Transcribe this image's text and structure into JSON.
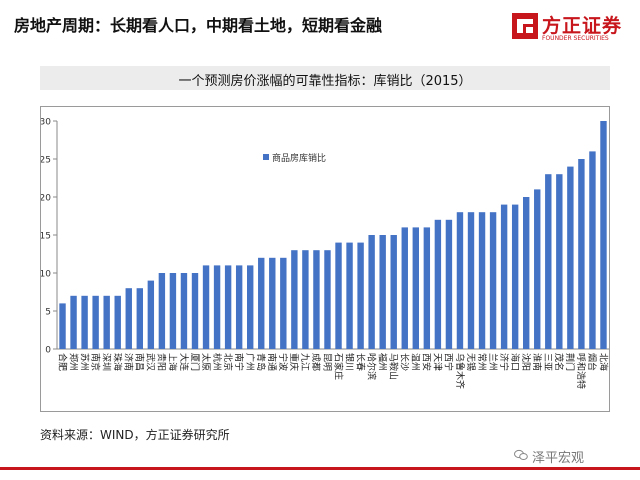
{
  "header": {
    "title": "房地产周期：长期看人口，中期看土地，短期看金融"
  },
  "logo": {
    "name": "方正证券",
    "sub": "FOUNDER SECURITIES"
  },
  "colors": {
    "bar": "#4472c4",
    "accent": "#c8161d",
    "title_bg": "#ececec"
  },
  "chart_data": {
    "type": "bar",
    "title": "一个预测房价涨幅的可靠性指标：库销比（2015）",
    "legend": [
      "商品房库销比"
    ],
    "legend_position": "top-left",
    "categories": [
      "合肥",
      "郑州",
      "苏州",
      "南京",
      "深圳",
      "珠海",
      "济南",
      "南昌",
      "武汉",
      "贵阳",
      "上海",
      "大连",
      "厦门",
      "太原",
      "杭州",
      "北京",
      "南宁",
      "广州",
      "青岛",
      "南通",
      "宁波",
      "重庆",
      "九江",
      "成都",
      "昆明",
      "石家庄",
      "银川",
      "长春",
      "哈尔滨",
      "福州",
      "马鞍山",
      "长沙",
      "温州",
      "西安",
      "天津",
      "西宁",
      "乌鲁木齐",
      "无锡",
      "常州",
      "兰州",
      "济宁",
      "海口",
      "沈阳",
      "淮南",
      "三亚",
      "茂名",
      "荆门",
      "呼和浩特",
      "烟台",
      "北海"
    ],
    "series": [
      {
        "name": "商品房库销比",
        "values": [
          6,
          7,
          7,
          7,
          7,
          7,
          8,
          8,
          9,
          10,
          10,
          10,
          10,
          11,
          11,
          11,
          11,
          11,
          12,
          12,
          12,
          13,
          13,
          13,
          13,
          14,
          14,
          14,
          15,
          15,
          15,
          16,
          16,
          16,
          17,
          17,
          18,
          18,
          18,
          18,
          19,
          19,
          20,
          21,
          23,
          23,
          24,
          25,
          26,
          30
        ]
      }
    ],
    "ylim": [
      0,
      30
    ],
    "yticks": [
      0,
      5,
      10,
      15,
      20,
      25,
      30
    ],
    "xlabel": "",
    "ylabel": "",
    "grid": false
  },
  "footer": {
    "source": "资料来源：WIND，方正证券研究所",
    "watermark": "泽平宏观"
  }
}
